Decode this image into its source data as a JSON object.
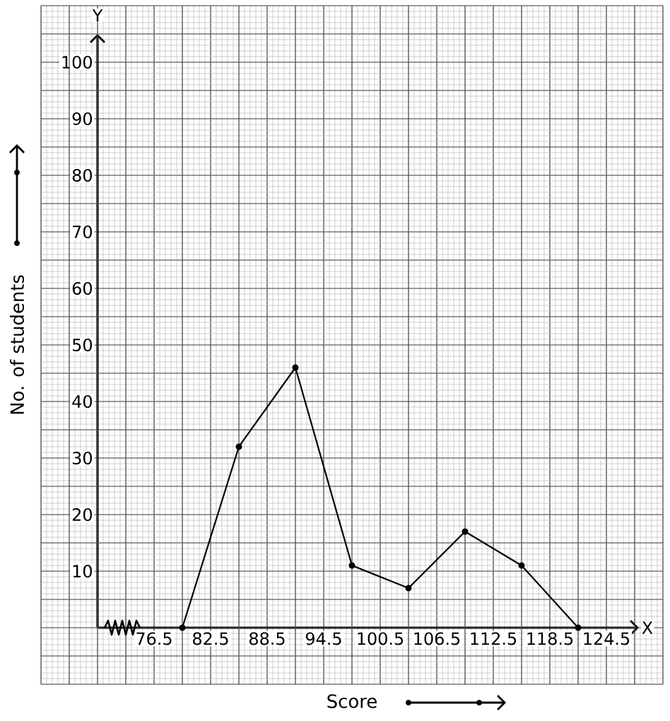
{
  "chart_data": {
    "type": "line",
    "xlabel": "Score",
    "ylabel": "No. of students",
    "annotations": [
      "Y",
      "X"
    ],
    "x": [
      79.5,
      85.5,
      91.5,
      97.5,
      103.5,
      109.5,
      115.5,
      121.5
    ],
    "values": [
      0,
      32,
      46,
      11,
      7,
      17,
      11,
      0
    ],
    "color": "#000000",
    "marker": "circle",
    "line_style": "solid",
    "grid": true,
    "xlim": [
      64.5,
      130.5
    ],
    "ylim": [
      -10,
      110
    ],
    "xticks": [
      76.5,
      82.5,
      88.5,
      94.5,
      100.5,
      106.5,
      112.5,
      118.5,
      124.5
    ],
    "yticks": [
      10,
      20,
      30,
      40,
      50,
      60,
      70,
      80,
      90,
      100
    ]
  }
}
